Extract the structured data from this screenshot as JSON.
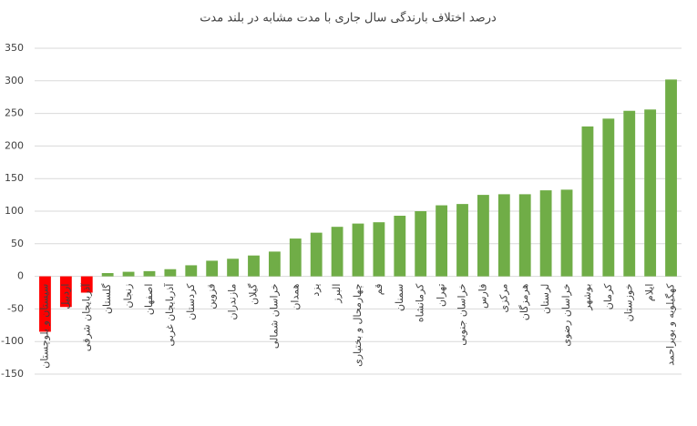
{
  "chart_data": {
    "type": "bar",
    "title": "درصد اختلاف بارندگی سال جاری با مدت مشابه در بلند مدت",
    "categories": [
      "سیستان و بلوچستان",
      "اردبیل",
      "آذربایجان شرقی",
      "گلستان",
      "زنجان",
      "اصفهان",
      "آذربایجان غربی",
      "کردستان",
      "قزوین",
      "مازندران",
      "گیلان",
      "خراسان شمالی",
      "همدان",
      "یزد",
      "البرز",
      "چهارمحال و بختیاری",
      "قم",
      "سمنان",
      "کرمانشاه",
      "تهران",
      "خراسان جنوبی",
      "فارس",
      "مرکزی",
      "هرمزگان",
      "لرستان",
      "خراسان رضوی",
      "بوشهر",
      "کرمان",
      "خوزستان",
      "ایلام",
      "کهگیلویه و بویراحمد"
    ],
    "values": [
      -85,
      -47,
      -25,
      5,
      7,
      8,
      11,
      17,
      24,
      27,
      32,
      38,
      58,
      67,
      76,
      81,
      83,
      93,
      100,
      109,
      111,
      125,
      126,
      126,
      132,
      133,
      230,
      242,
      254,
      256,
      302
    ],
    "color": "#70ad47",
    "negative_color": "#ff0000",
    "ylim": [
      -150,
      350
    ],
    "yticks": [
      -150,
      -100,
      -50,
      0,
      50,
      100,
      150,
      200,
      250,
      300,
      350
    ],
    "grid": true
  }
}
